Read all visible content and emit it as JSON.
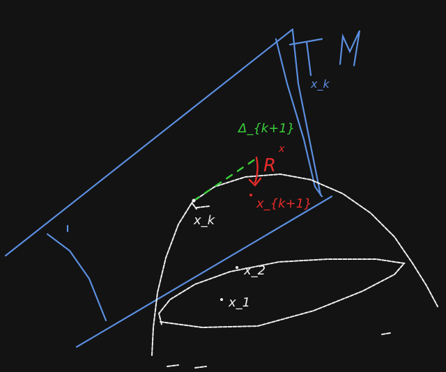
{
  "labels": {
    "tangent_plane_symbol": "T",
    "tangent_plane_subscript": "x_k",
    "manifold_symbol": "M",
    "step_label": "Δ_{k+1}",
    "retraction_symbol": "R",
    "retraction_superscript": "x",
    "next_point_label": "x_{k+1}",
    "current_point_label": "x_k",
    "point_x2_label": "x_2",
    "point_x1_label": "x_1"
  },
  "colors": {
    "background": "#131313",
    "tangent_plane": "#5b8fe0",
    "manifold": "#f2f2f2",
    "step_vector": "#3bcf3b",
    "retraction": "#e82b2b"
  }
}
